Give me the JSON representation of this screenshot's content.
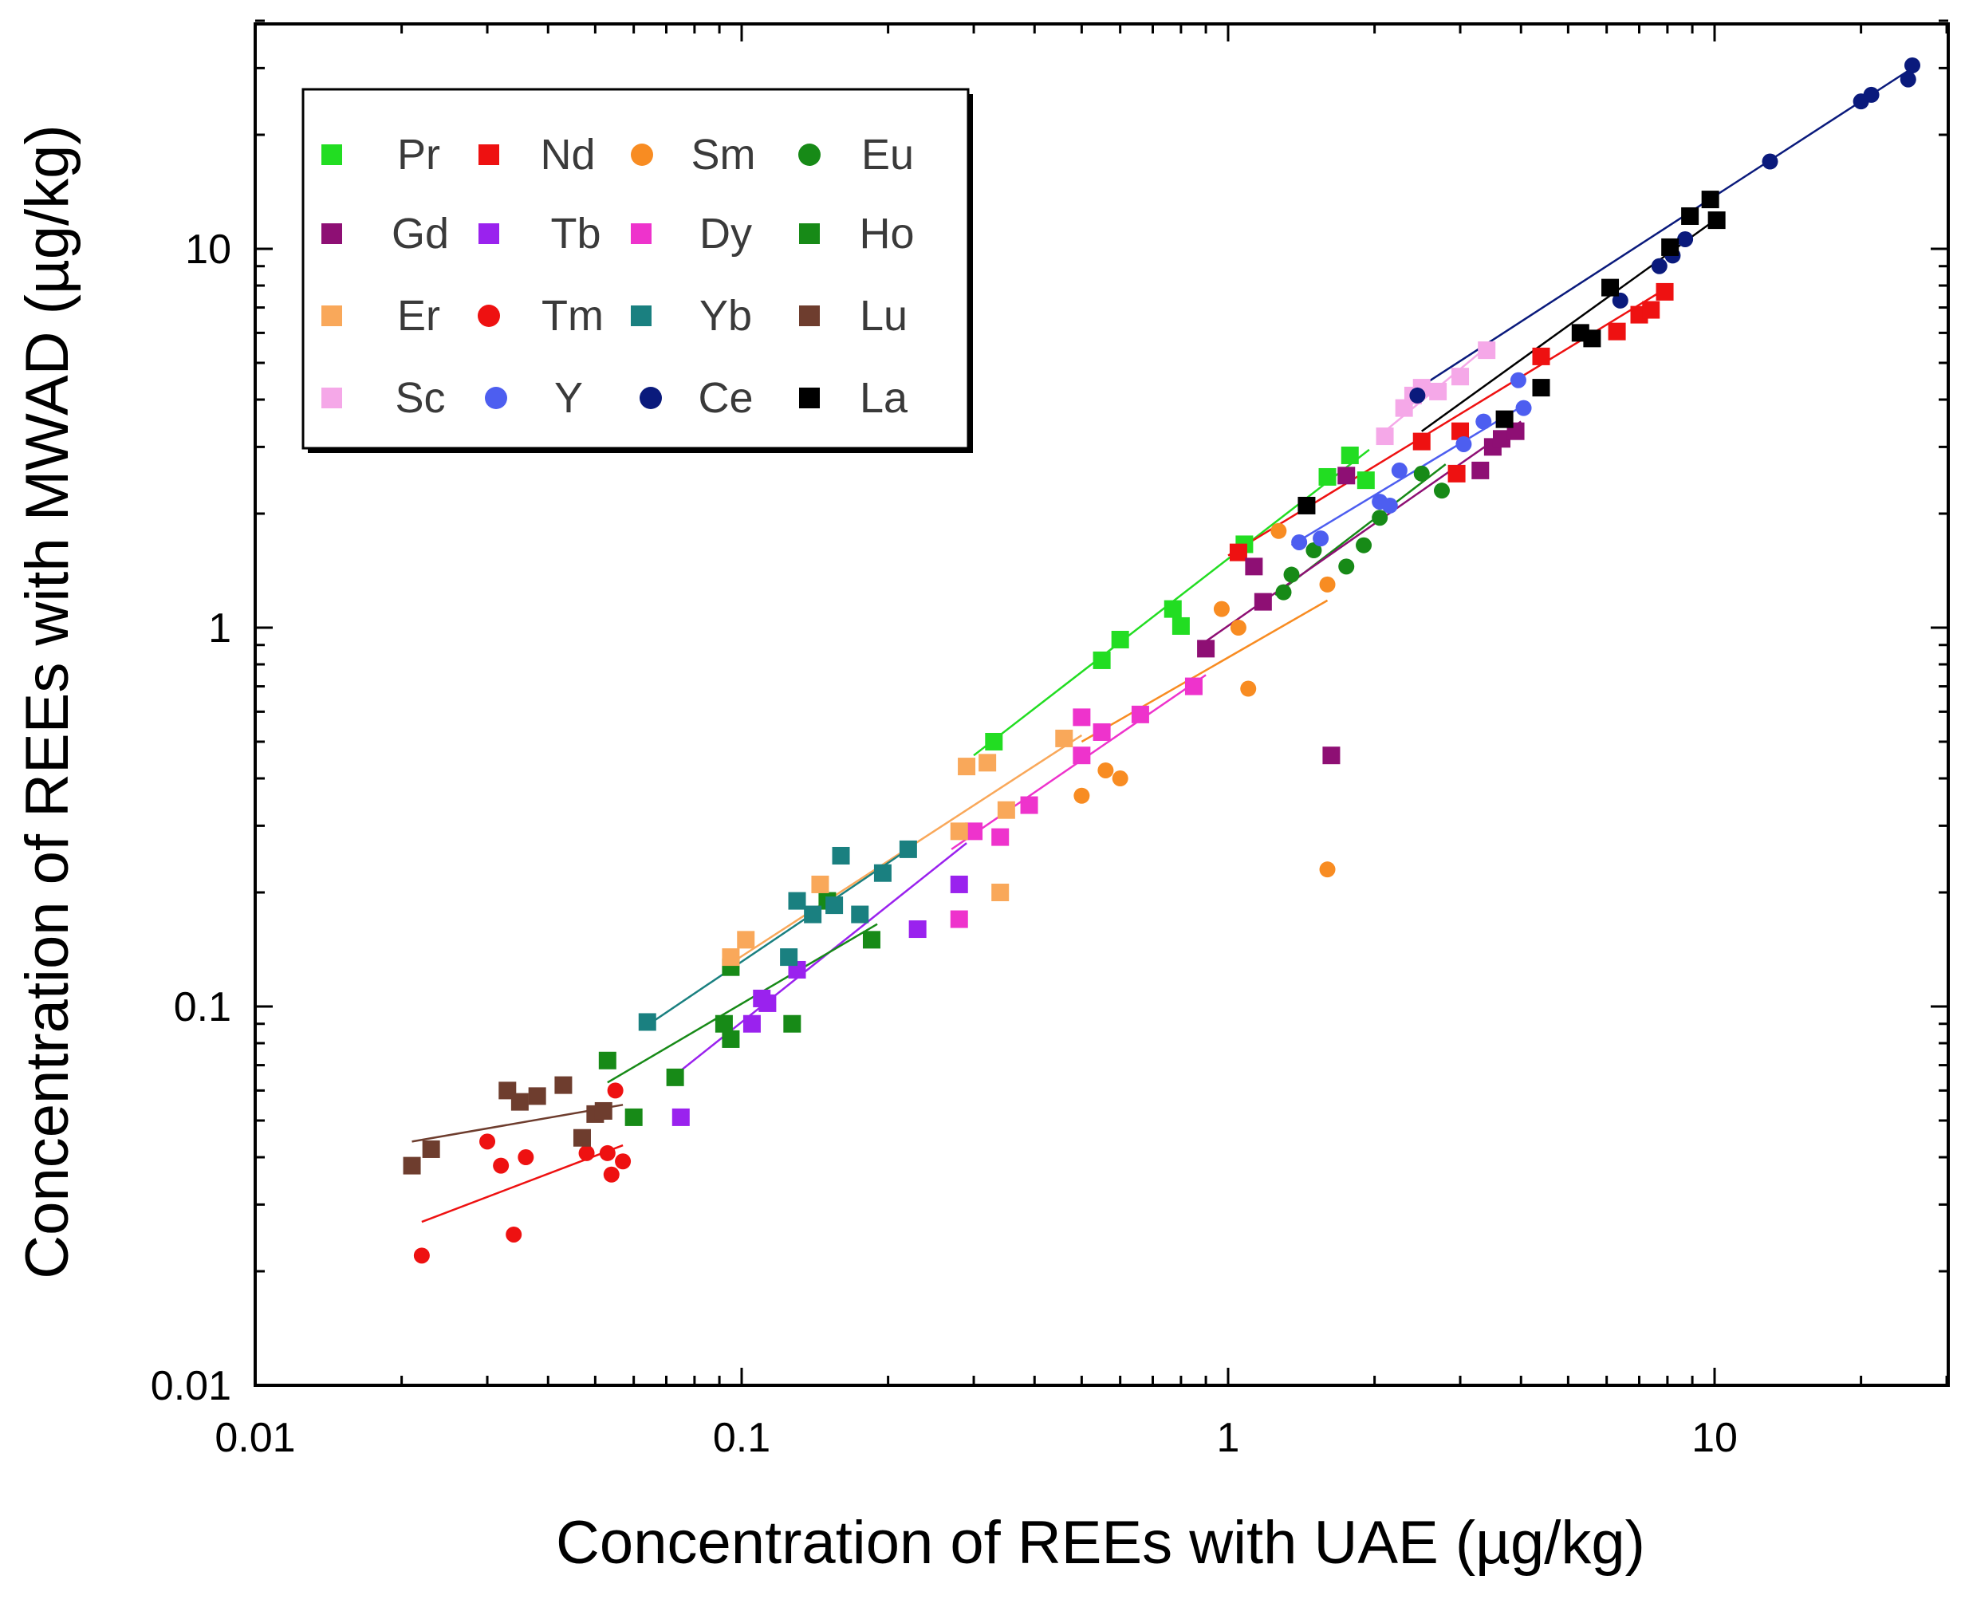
{
  "chart_data": {
    "type": "scatter",
    "title": "",
    "xlabel": "Concentration of REEs with UAE (µg/kg)",
    "ylabel": "Concentration of REEs with MWAD (µg/kg)",
    "xscale": "log",
    "yscale": "log",
    "xlim": [
      0.01,
      30
    ],
    "ylim": [
      0.01,
      40
    ],
    "xticks": [
      0.01,
      0.1,
      1,
      10
    ],
    "xtick_labels": [
      "0.01",
      "0.1",
      "1",
      "10"
    ],
    "yticks": [
      0.01,
      0.1,
      1,
      10
    ],
    "ytick_labels": [
      "0.01",
      "0.1",
      "1",
      "10"
    ],
    "grid": false,
    "legend_position": "top-left",
    "series": [
      {
        "name": "Pr",
        "color": "#22dd22",
        "marker": "square",
        "x": [
          0.33,
          0.55,
          0.6,
          0.77,
          0.8,
          1.08,
          1.6,
          1.78,
          1.92
        ],
        "y": [
          0.5,
          0.82,
          0.93,
          1.12,
          1.01,
          1.66,
          2.5,
          2.85,
          2.45
        ],
        "fit": [
          [
            0.3,
            0.46
          ],
          [
            1.95,
            2.95
          ]
        ]
      },
      {
        "name": "Nd",
        "color": "#ee1111",
        "marker": "square",
        "x": [
          1.05,
          2.5,
          2.95,
          3.0,
          4.4,
          6.3,
          7.0,
          7.4,
          7.9
        ],
        "y": [
          1.58,
          3.1,
          2.55,
          3.3,
          5.2,
          6.05,
          6.7,
          6.9,
          7.7
        ],
        "fit": [
          [
            1.0,
            1.55
          ],
          [
            8.0,
            7.9
          ]
        ]
      },
      {
        "name": "Sm",
        "color": "#f88c22",
        "marker": "circle",
        "x": [
          0.5,
          0.56,
          0.6,
          0.97,
          1.05,
          1.1,
          1.27,
          1.6,
          1.6
        ],
        "y": [
          0.36,
          0.42,
          0.4,
          1.12,
          1.0,
          0.69,
          1.8,
          1.3,
          0.23
        ],
        "fit": [
          [
            0.5,
            0.5
          ],
          [
            1.6,
            1.18
          ]
        ]
      },
      {
        "name": "Eu",
        "color": "#178a17",
        "marker": "circle",
        "x": [
          1.3,
          1.35,
          1.5,
          1.75,
          1.9,
          2.05,
          2.5,
          2.75
        ],
        "y": [
          1.24,
          1.38,
          1.6,
          1.45,
          1.65,
          1.95,
          2.55,
          2.3
        ],
        "fit": [
          [
            1.25,
            1.22
          ],
          [
            2.8,
            2.7
          ]
        ]
      },
      {
        "name": "Gd",
        "color": "#8e0f74",
        "marker": "square",
        "x": [
          0.9,
          1.13,
          1.18,
          1.75,
          3.3,
          3.5,
          3.65,
          3.9,
          1.63
        ],
        "y": [
          0.88,
          1.45,
          1.17,
          2.52,
          2.6,
          3.0,
          3.15,
          3.3,
          0.46
        ],
        "fit": [
          [
            0.9,
            0.92
          ],
          [
            4.0,
            3.5
          ]
        ]
      },
      {
        "name": "Tb",
        "color": "#9a22ee",
        "marker": "square",
        "x": [
          0.075,
          0.105,
          0.11,
          0.113,
          0.13,
          0.23,
          0.28
        ],
        "y": [
          0.051,
          0.09,
          0.105,
          0.102,
          0.125,
          0.16,
          0.21
        ],
        "fit": [
          [
            0.072,
            0.065
          ],
          [
            0.29,
            0.27
          ]
        ]
      },
      {
        "name": "Dy",
        "color": "#ee33cc",
        "marker": "square",
        "x": [
          0.28,
          0.3,
          0.34,
          0.39,
          0.5,
          0.5,
          0.55,
          0.66,
          0.85
        ],
        "y": [
          0.17,
          0.29,
          0.28,
          0.34,
          0.46,
          0.58,
          0.53,
          0.59,
          0.7
        ],
        "fit": [
          [
            0.27,
            0.26
          ],
          [
            0.9,
            0.75
          ]
        ]
      },
      {
        "name": "Ho",
        "color": "#178a17",
        "marker": "square",
        "x": [
          0.053,
          0.06,
          0.073,
          0.092,
          0.095,
          0.095,
          0.127,
          0.15,
          0.185
        ],
        "y": [
          0.072,
          0.051,
          0.065,
          0.09,
          0.082,
          0.127,
          0.09,
          0.19,
          0.15
        ],
        "fit": [
          [
            0.053,
            0.063
          ],
          [
            0.19,
            0.165
          ]
        ]
      },
      {
        "name": "Er",
        "color": "#f9a85a",
        "marker": "square",
        "x": [
          0.095,
          0.102,
          0.145,
          0.28,
          0.29,
          0.32,
          0.35,
          0.34,
          0.46
        ],
        "y": [
          0.135,
          0.15,
          0.21,
          0.29,
          0.43,
          0.44,
          0.33,
          0.2,
          0.51
        ],
        "fit": [
          [
            0.095,
            0.13
          ],
          [
            0.5,
            0.52
          ]
        ]
      },
      {
        "name": "Tm",
        "color": "#ee1111",
        "marker": "circle",
        "x": [
          0.022,
          0.03,
          0.032,
          0.034,
          0.036,
          0.048,
          0.053,
          0.054,
          0.055,
          0.057
        ],
        "y": [
          0.022,
          0.044,
          0.038,
          0.025,
          0.04,
          0.041,
          0.041,
          0.036,
          0.06,
          0.039
        ],
        "fit": [
          [
            0.022,
            0.027
          ],
          [
            0.057,
            0.043
          ]
        ]
      },
      {
        "name": "Yb",
        "color": "#1a8080",
        "marker": "square",
        "x": [
          0.064,
          0.125,
          0.13,
          0.14,
          0.155,
          0.16,
          0.175,
          0.195,
          0.22
        ],
        "y": [
          0.091,
          0.135,
          0.19,
          0.175,
          0.185,
          0.25,
          0.175,
          0.225,
          0.26
        ],
        "fit": [
          [
            0.063,
            0.088
          ],
          [
            0.22,
            0.26
          ]
        ]
      },
      {
        "name": "Lu",
        "color": "#6e3d2e",
        "marker": "square",
        "x": [
          0.021,
          0.023,
          0.033,
          0.035,
          0.038,
          0.043,
          0.047,
          0.05,
          0.052
        ],
        "y": [
          0.038,
          0.042,
          0.06,
          0.056,
          0.058,
          0.062,
          0.045,
          0.052,
          0.053
        ],
        "fit": [
          [
            0.021,
            0.044
          ],
          [
            0.057,
            0.055
          ]
        ]
      },
      {
        "name": "Sc",
        "color": "#f5a8e8",
        "marker": "square",
        "x": [
          2.1,
          2.3,
          2.4,
          2.5,
          2.7,
          3.0,
          3.4
        ],
        "y": [
          3.2,
          3.8,
          4.1,
          4.3,
          4.2,
          4.6,
          5.4
        ],
        "fit": [
          [
            2.1,
            3.3
          ],
          [
            3.4,
            5.5
          ]
        ]
      },
      {
        "name": "Y",
        "color": "#4d5ef0",
        "marker": "circle",
        "x": [
          1.4,
          1.55,
          2.05,
          2.15,
          2.25,
          3.05,
          3.35,
          3.95,
          4.05
        ],
        "y": [
          1.68,
          1.72,
          2.15,
          2.1,
          2.6,
          3.05,
          3.5,
          4.5,
          3.8
        ],
        "fit": [
          [
            1.35,
            1.65
          ],
          [
            4.1,
            3.9
          ]
        ]
      },
      {
        "name": "Ce",
        "color": "#0a1a7c",
        "marker": "circle",
        "x": [
          2.45,
          6.4,
          7.7,
          8.2,
          8.7,
          13,
          20,
          21,
          25,
          25.5
        ],
        "y": [
          4.1,
          7.3,
          9.0,
          9.6,
          10.6,
          17,
          24.5,
          25.5,
          28,
          30.5
        ],
        "fit": [
          [
            2.4,
            4.2
          ],
          [
            25.5,
            30
          ]
        ]
      },
      {
        "name": "La",
        "color": "#000000",
        "marker": "square",
        "x": [
          1.45,
          3.7,
          4.4,
          5.3,
          5.6,
          6.1,
          8.1,
          8.9,
          9.8,
          10.1
        ],
        "y": [
          2.1,
          3.55,
          4.3,
          6.0,
          5.8,
          7.9,
          10.1,
          12.2,
          13.5,
          11.9
        ],
        "fit": [
          [
            2.5,
            3.3
          ],
          [
            10.1,
            12.0
          ]
        ]
      }
    ]
  }
}
